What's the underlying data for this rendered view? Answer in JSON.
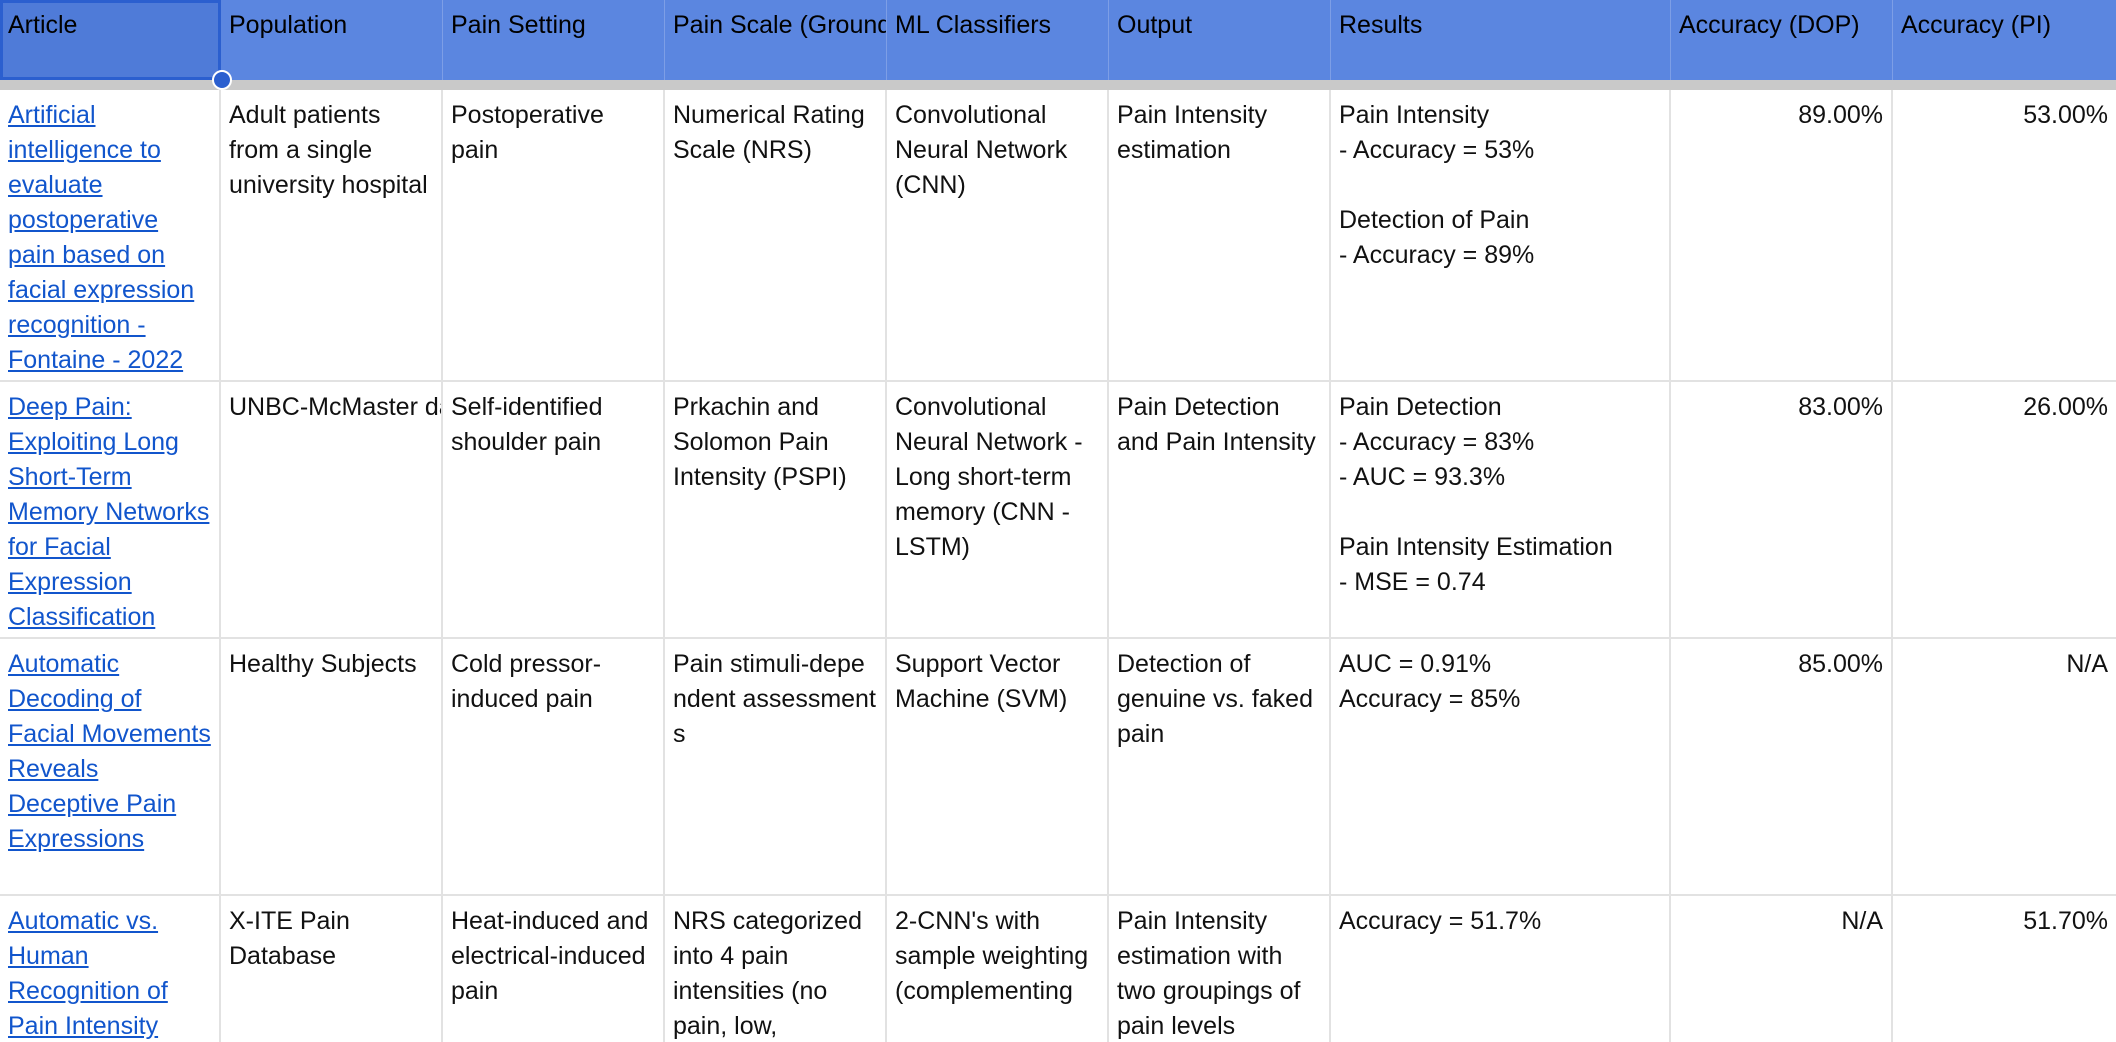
{
  "headers": [
    "Article",
    "Population",
    "Pain Setting",
    "Pain Scale (Ground",
    "ML Classifiers",
    "Output",
    "Results",
    "Accuracy (DOP)",
    "Accuracy (PI)"
  ],
  "rows": [
    {
      "article": "Artificial intelligence to evaluate postoperative pain based on facial expression recognition - Fontaine - 2022",
      "population": "Adult patients from a single university hospital",
      "pain_setting": "Postoperative pain",
      "pain_scale": "Numerical Rating Scale (NRS)",
      "ml_classifiers": "Convolutional Neural Network (CNN)",
      "output": "Pain Intensity estimation",
      "results": "Pain Intensity\n- Accuracy = 53%\n\nDetection of Pain\n- Accuracy = 89%",
      "acc_dop": "89.00%",
      "acc_pi": "53.00%"
    },
    {
      "article": "Deep Pain: Exploiting Long Short-Term Memory Networks for Facial Expression Classification",
      "population": "UNBC-McMaster\n\ndatabase",
      "pain_setting": "Self-identified shoulder pain",
      "pain_scale": "Prkachin and Solomon Pain Intensity (PSPI)",
      "ml_classifiers": "Convolutional Neural Network - Long short-term memory (CNN - LSTM)",
      "output": "Pain Detection and Pain Intensity",
      "results": "Pain Detection\n- Accuracy = 83%\n- AUC = 93.3%\n\nPain Intensity Estimation\n- MSE = 0.74",
      "acc_dop": "83.00%",
      "acc_pi": "26.00%"
    },
    {
      "article": "Automatic Decoding of Facial Movements Reveals Deceptive Pain Expressions",
      "population": "Healthy Subjects",
      "pain_setting": "Cold pressor-induced pain",
      "pain_scale": "Pain stimuli-dependent assessments",
      "ml_classifiers": "Support Vector Machine (SVM)",
      "output": "Detection of genuine vs. faked pain",
      "results": "AUC = 0.91%\nAccuracy = 85%",
      "acc_dop": "85.00%",
      "acc_pi": "N/A"
    },
    {
      "article": "Automatic vs. Human Recognition of Pain Intensity",
      "population": "X-ITE Pain Database",
      "pain_setting": "Heat-induced and electrical-induced pain",
      "pain_scale": "NRS categorized into 4 pain intensities (no pain, low,",
      "ml_classifiers": "2-CNN's with sample weighting (complementing",
      "output": "Pain Intensity estimation with two groupings of pain levels",
      "results": "Accuracy = 51.7%",
      "acc_dop": "N/A",
      "acc_pi": "51.70%"
    }
  ]
}
